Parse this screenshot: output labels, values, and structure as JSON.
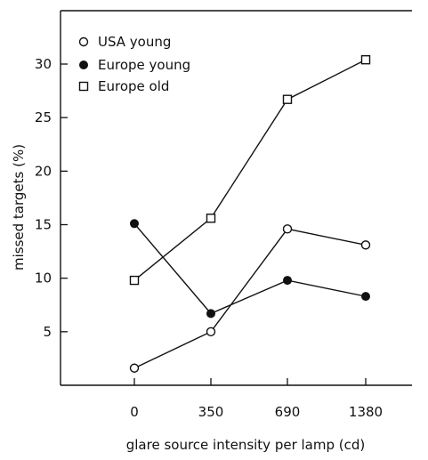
{
  "chart_data": {
    "type": "line",
    "title": "",
    "xlabel": "glare source intensity per lamp (cd)",
    "ylabel": "missed targets (%)",
    "categories": [
      "0",
      "350",
      "690",
      "1380"
    ],
    "yticks": [
      5,
      10,
      15,
      20,
      25,
      30
    ],
    "ylim": [
      0,
      34.5
    ],
    "grid": false,
    "legend_position": "top-left",
    "series": [
      {
        "name": "USA young",
        "marker": "open-circle",
        "values": [
          1.6,
          5.0,
          14.6,
          13.1
        ]
      },
      {
        "name": "Europe young",
        "marker": "filled-circle",
        "values": [
          15.1,
          6.7,
          9.8,
          8.3
        ]
      },
      {
        "name": "Europe old",
        "marker": "open-square",
        "values": [
          9.8,
          15.6,
          26.7,
          30.4
        ]
      }
    ],
    "colors": {
      "ink": "#111111"
    }
  }
}
